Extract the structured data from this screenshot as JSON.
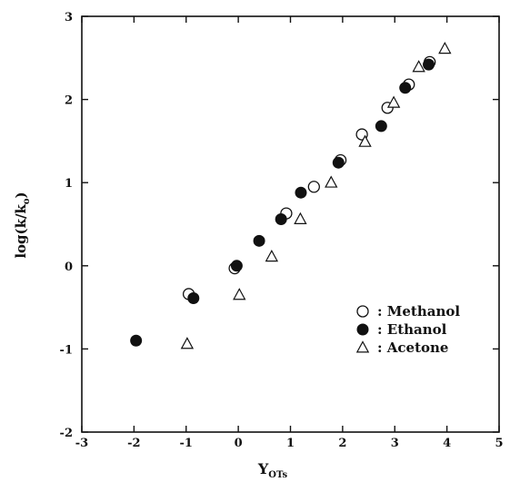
{
  "chart_data": {
    "type": "scatter",
    "xlabel": {
      "main": "Y",
      "sub": "OTs"
    },
    "ylabel": {
      "main": "log(k/k",
      "sub": "o",
      "close": ")"
    },
    "xlim": [
      -3,
      5
    ],
    "ylim": [
      -2,
      3
    ],
    "xticks": [
      -3,
      -2,
      -1,
      0,
      1,
      2,
      3,
      4,
      5
    ],
    "yticks": [
      -2,
      -1,
      0,
      1,
      2,
      3
    ],
    "grid": false,
    "legend_position": "bottom-right",
    "series": [
      {
        "name": ": Methanol",
        "marker": "open-circle",
        "points": [
          {
            "x": -0.95,
            "y": -0.34
          },
          {
            "x": -0.07,
            "y": -0.03
          },
          {
            "x": 0.92,
            "y": 0.63
          },
          {
            "x": 1.45,
            "y": 0.95
          },
          {
            "x": 1.96,
            "y": 1.27
          },
          {
            "x": 2.37,
            "y": 1.58
          },
          {
            "x": 2.86,
            "y": 1.9
          },
          {
            "x": 3.27,
            "y": 2.18
          },
          {
            "x": 3.67,
            "y": 2.45
          }
        ]
      },
      {
        "name": ": Ethanol",
        "marker": "filled-circle",
        "points": [
          {
            "x": -1.96,
            "y": -0.9
          },
          {
            "x": -0.86,
            "y": -0.39
          },
          {
            "x": -0.03,
            "y": 0.0
          },
          {
            "x": 0.4,
            "y": 0.3
          },
          {
            "x": 0.82,
            "y": 0.56
          },
          {
            "x": 1.2,
            "y": 0.88
          },
          {
            "x": 1.92,
            "y": 1.24
          },
          {
            "x": 2.74,
            "y": 1.68
          },
          {
            "x": 3.2,
            "y": 2.14
          },
          {
            "x": 3.65,
            "y": 2.42
          }
        ]
      },
      {
        "name": ": Acetone",
        "marker": "open-triangle",
        "points": [
          {
            "x": -0.98,
            "y": -0.94
          },
          {
            "x": 0.02,
            "y": -0.35
          },
          {
            "x": 0.64,
            "y": 0.11
          },
          {
            "x": 1.19,
            "y": 0.56
          },
          {
            "x": 1.78,
            "y": 1.0
          },
          {
            "x": 2.43,
            "y": 1.49
          },
          {
            "x": 2.98,
            "y": 1.96
          },
          {
            "x": 3.46,
            "y": 2.39
          },
          {
            "x": 3.96,
            "y": 2.61
          }
        ]
      }
    ]
  }
}
